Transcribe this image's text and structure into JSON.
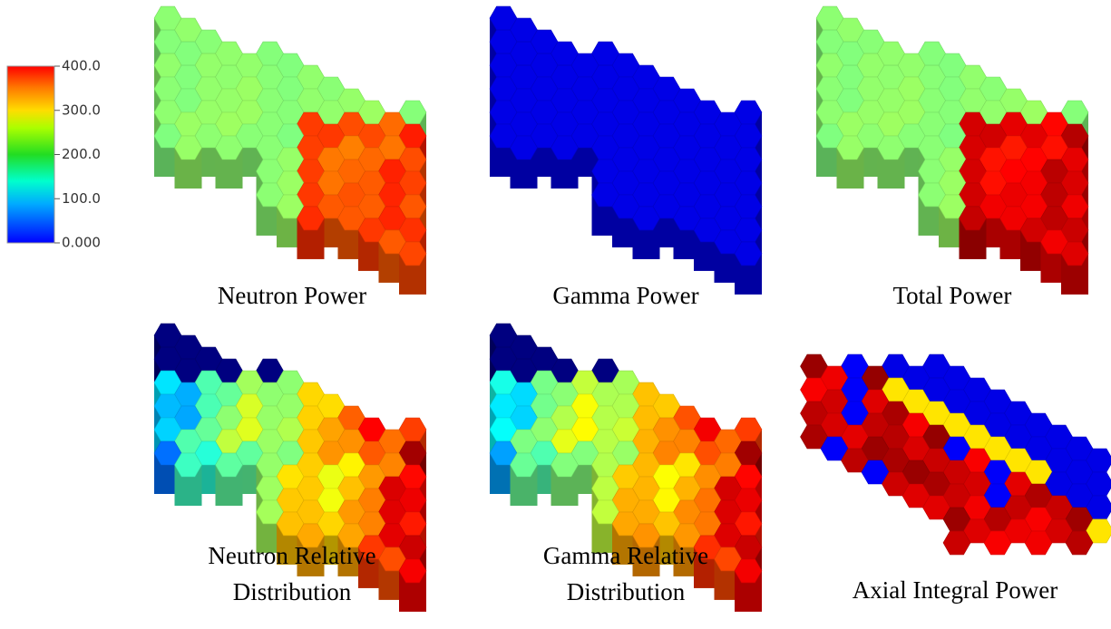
{
  "colorbar": {
    "labels": [
      "400.0",
      "300.0",
      "200.0",
      "100.0",
      "0.000"
    ]
  },
  "panels": [
    {
      "caption": [
        "Neutron Power"
      ]
    },
    {
      "caption": [
        "Gamma Power"
      ]
    },
    {
      "caption": [
        "Total Power"
      ]
    },
    {
      "caption": [
        "Neutron Relative",
        "Distribution"
      ]
    },
    {
      "caption": [
        "Gamma Relative",
        "Distribution"
      ]
    },
    {
      "caption": [
        "Axial Integral Power"
      ]
    }
  ]
}
